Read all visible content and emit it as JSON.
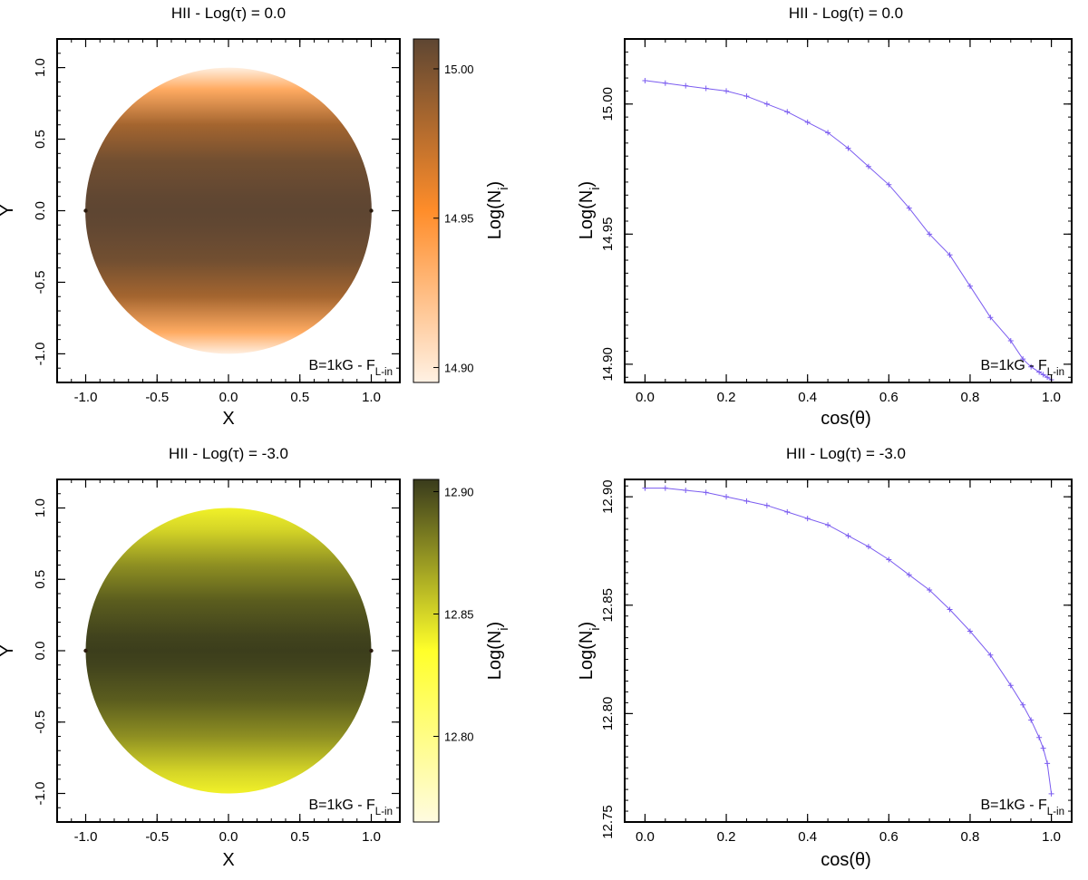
{
  "chart_data": [
    {
      "type": "heatmap",
      "panel": "top-left",
      "title": "HII - Log(τ) = 0.0",
      "xlabel": "X",
      "ylabel": "Y",
      "xlim": [
        -1.2,
        1.2
      ],
      "ylim": [
        -1.2,
        1.2
      ],
      "xticks": [
        -1.0,
        -0.5,
        0.0,
        0.5,
        1.0
      ],
      "yticks": [
        -1.0,
        -0.5,
        0.0,
        0.5,
        1.0
      ],
      "xtick_labels": [
        "-1.0",
        "-0.5",
        "0.0",
        "0.5",
        "1.0"
      ],
      "ytick_labels": [
        "-1.0",
        "-0.5",
        "0.0",
        "0.5",
        "1.0"
      ],
      "annotation": {
        "text": "B=1kG - F",
        "sub": "L-in"
      },
      "colorbar": {
        "label": "Log(N",
        "label_sub": "i",
        "label_close": ")",
        "range": [
          14.895,
          15.01
        ],
        "ticks": [
          14.9,
          14.95,
          15.0
        ],
        "tick_labels": [
          "14.90",
          "14.95",
          "15.00"
        ],
        "colors": [
          "#fff1e3",
          "#ff8d2a",
          "#5e4632"
        ]
      },
      "disk_rows_y": [
        1.0,
        0.85,
        0.6,
        0.35,
        0.1,
        0.0,
        -0.1,
        -0.35,
        -0.6,
        -0.85,
        -1.0
      ],
      "disk_rows_value": [
        14.896,
        14.935,
        14.985,
        15.003,
        15.009,
        15.01,
        15.009,
        15.003,
        14.985,
        14.935,
        14.896
      ]
    },
    {
      "type": "line",
      "panel": "top-right",
      "title": "HII - Log(τ) = 0.0",
      "xlabel": "cos(θ)",
      "ylabel": "Log(N",
      "ylabel_sub": "i",
      "ylabel_close": ")",
      "xlim": [
        -0.05,
        1.05
      ],
      "ylim": [
        14.893,
        15.025
      ],
      "xticks": [
        0.0,
        0.2,
        0.4,
        0.6,
        0.8,
        1.0
      ],
      "xtick_labels": [
        "0.0",
        "0.2",
        "0.4",
        "0.6",
        "0.8",
        "1.0"
      ],
      "yticks": [
        14.9,
        14.95,
        15.0
      ],
      "ytick_labels": [
        "14.90",
        "14.95",
        "15.00"
      ],
      "annotation": {
        "text": "B=1kG - F",
        "sub": "L-in"
      },
      "series": [
        {
          "name": "HII",
          "color": "#7b5cf0",
          "x": [
            0.0,
            0.05,
            0.1,
            0.15,
            0.2,
            0.25,
            0.3,
            0.35,
            0.4,
            0.45,
            0.5,
            0.55,
            0.6,
            0.65,
            0.7,
            0.75,
            0.8,
            0.85,
            0.9,
            0.93,
            0.95,
            0.97,
            0.98,
            0.99,
            1.0
          ],
          "y": [
            15.009,
            15.008,
            15.007,
            15.006,
            15.005,
            15.003,
            15.0,
            14.997,
            14.993,
            14.989,
            14.983,
            14.976,
            14.969,
            14.96,
            14.95,
            14.942,
            14.93,
            14.918,
            14.909,
            14.902,
            14.899,
            14.897,
            14.896,
            14.895,
            14.894
          ]
        }
      ]
    },
    {
      "type": "heatmap",
      "panel": "bottom-left",
      "title": "HII - Log(τ) = -3.0",
      "xlabel": "X",
      "ylabel": "Y",
      "xlim": [
        -1.2,
        1.2
      ],
      "ylim": [
        -1.2,
        1.2
      ],
      "xticks": [
        -1.0,
        -0.5,
        0.0,
        0.5,
        1.0
      ],
      "yticks": [
        -1.0,
        -0.5,
        0.0,
        0.5,
        1.0
      ],
      "xtick_labels": [
        "-1.0",
        "-0.5",
        "0.0",
        "0.5",
        "1.0"
      ],
      "ytick_labels": [
        "-1.0",
        "-0.5",
        "0.0",
        "0.5",
        "1.0"
      ],
      "annotation": {
        "text": "B=1kG - F",
        "sub": "L-in"
      },
      "colorbar": {
        "label": "Log(N",
        "label_sub": "i",
        "label_close": ")",
        "range": [
          12.765,
          12.905
        ],
        "ticks": [
          12.8,
          12.85,
          12.9
        ],
        "tick_labels": [
          "12.80",
          "12.85",
          "12.90"
        ],
        "colors": [
          "#fffbe0",
          "#ffff2a",
          "#393b1c"
        ]
      },
      "disk_rows_y": [
        1.0,
        0.85,
        0.6,
        0.35,
        0.1,
        0.0,
        -0.1,
        -0.35,
        -0.6,
        -0.85,
        -1.0
      ],
      "disk_rows_value": [
        12.84,
        12.85,
        12.875,
        12.893,
        12.902,
        12.904,
        12.902,
        12.893,
        12.875,
        12.85,
        12.84
      ]
    },
    {
      "type": "line",
      "panel": "bottom-right",
      "title": "HII - Log(τ) = -3.0",
      "xlabel": "cos(θ)",
      "ylabel": "Log(N",
      "ylabel_sub": "i",
      "ylabel_close": ")",
      "xlim": [
        -0.05,
        1.05
      ],
      "ylim": [
        12.75,
        12.908
      ],
      "xticks": [
        0.0,
        0.2,
        0.4,
        0.6,
        0.8,
        1.0
      ],
      "xtick_labels": [
        "0.0",
        "0.2",
        "0.4",
        "0.6",
        "0.8",
        "1.0"
      ],
      "yticks": [
        12.75,
        12.8,
        12.85,
        12.9
      ],
      "ytick_labels": [
        "12.75",
        "12.80",
        "12.85",
        "12.90"
      ],
      "annotation": {
        "text": "B=1kG - F",
        "sub": "L-in"
      },
      "series": [
        {
          "name": "HII",
          "color": "#7b5cf0",
          "x": [
            0.0,
            0.05,
            0.1,
            0.15,
            0.2,
            0.25,
            0.3,
            0.35,
            0.4,
            0.45,
            0.5,
            0.55,
            0.6,
            0.65,
            0.7,
            0.75,
            0.8,
            0.85,
            0.9,
            0.93,
            0.95,
            0.97,
            0.98,
            0.99,
            1.0
          ],
          "y": [
            12.904,
            12.904,
            12.903,
            12.902,
            12.9,
            12.898,
            12.896,
            12.893,
            12.89,
            12.887,
            12.882,
            12.877,
            12.871,
            12.864,
            12.857,
            12.848,
            12.838,
            12.827,
            12.813,
            12.804,
            12.797,
            12.789,
            12.784,
            12.777,
            12.763
          ]
        }
      ]
    }
  ]
}
